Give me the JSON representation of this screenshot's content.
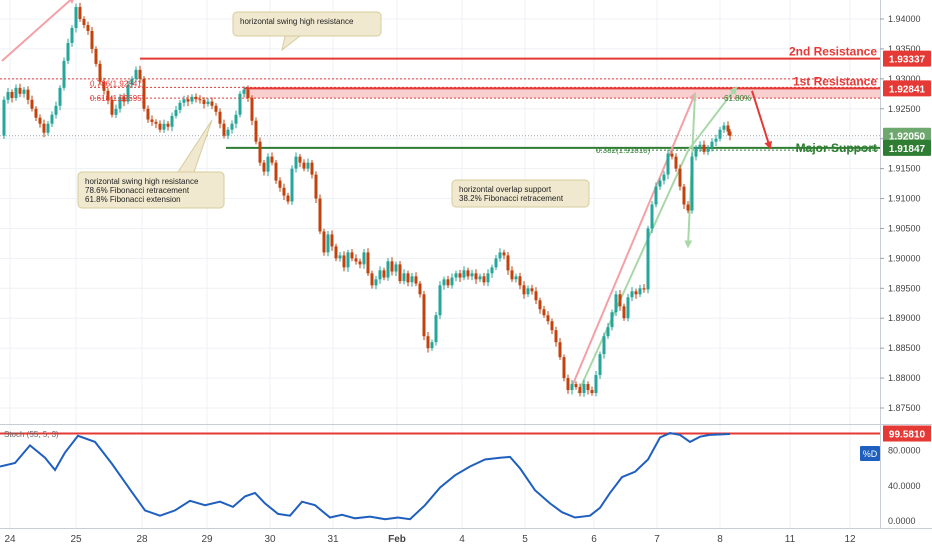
{
  "chart_data": {
    "type": "candlestick",
    "price_axis": {
      "min": 1.8725,
      "max": 1.9445,
      "ticks": [
        "1.94000",
        "1.93500",
        "1.93000",
        "1.92500",
        "1.92000",
        "1.91500",
        "1.91000",
        "1.90500",
        "1.90000",
        "1.89500",
        "1.89000",
        "1.88500",
        "1.88000",
        "1.87500"
      ]
    },
    "time_axis": {
      "labels": [
        "24",
        "25",
        "28",
        "29",
        "30",
        "31",
        "Feb",
        "4",
        "5",
        "6",
        "7",
        "8",
        "11",
        "12"
      ],
      "bold": [
        "Feb"
      ]
    },
    "series": [
      {
        "x": 0,
        "y": 1.9205
      },
      {
        "x": 4,
        "y": 1.9265
      },
      {
        "x": 8,
        "y": 1.9278
      },
      {
        "x": 12,
        "y": 1.9268
      },
      {
        "x": 16,
        "y": 1.9285
      },
      {
        "x": 20,
        "y": 1.9275
      },
      {
        "x": 24,
        "y": 1.9282
      },
      {
        "x": 28,
        "y": 1.9265
      },
      {
        "x": 32,
        "y": 1.925
      },
      {
        "x": 36,
        "y": 1.9235
      },
      {
        "x": 40,
        "y": 1.9225
      },
      {
        "x": 44,
        "y": 1.921
      },
      {
        "x": 48,
        "y": 1.9225
      },
      {
        "x": 52,
        "y": 1.924
      },
      {
        "x": 56,
        "y": 1.9255
      },
      {
        "x": 60,
        "y": 1.9285
      },
      {
        "x": 64,
        "y": 1.933
      },
      {
        "x": 68,
        "y": 1.936
      },
      {
        "x": 72,
        "y": 1.9385
      },
      {
        "x": 76,
        "y": 1.942
      },
      {
        "x": 80,
        "y": 1.94
      },
      {
        "x": 84,
        "y": 1.939
      },
      {
        "x": 88,
        "y": 1.938
      },
      {
        "x": 92,
        "y": 1.935
      },
      {
        "x": 96,
        "y": 1.9325
      },
      {
        "x": 100,
        "y": 1.9295
      },
      {
        "x": 104,
        "y": 1.928
      },
      {
        "x": 108,
        "y": 1.9265
      },
      {
        "x": 112,
        "y": 1.924
      },
      {
        "x": 116,
        "y": 1.925
      },
      {
        "x": 120,
        "y": 1.927
      },
      {
        "x": 124,
        "y": 1.9262
      },
      {
        "x": 128,
        "y": 1.929
      },
      {
        "x": 132,
        "y": 1.93
      },
      {
        "x": 136,
        "y": 1.9315
      },
      {
        "x": 140,
        "y": 1.93
      },
      {
        "x": 144,
        "y": 1.925
      },
      {
        "x": 148,
        "y": 1.9232
      },
      {
        "x": 152,
        "y": 1.9228
      },
      {
        "x": 156,
        "y": 1.9225
      },
      {
        "x": 160,
        "y": 1.9215
      },
      {
        "x": 164,
        "y": 1.9225
      },
      {
        "x": 168,
        "y": 1.922
      },
      {
        "x": 172,
        "y": 1.9238
      },
      {
        "x": 176,
        "y": 1.9248
      },
      {
        "x": 180,
        "y": 1.926
      },
      {
        "x": 184,
        "y": 1.9266
      },
      {
        "x": 188,
        "y": 1.9262
      },
      {
        "x": 192,
        "y": 1.927
      },
      {
        "x": 196,
        "y": 1.9266
      },
      {
        "x": 200,
        "y": 1.9265
      },
      {
        "x": 204,
        "y": 1.9258
      },
      {
        "x": 208,
        "y": 1.9262
      },
      {
        "x": 212,
        "y": 1.9255
      },
      {
        "x": 216,
        "y": 1.9245
      },
      {
        "x": 220,
        "y": 1.9225
      },
      {
        "x": 224,
        "y": 1.9205
      },
      {
        "x": 228,
        "y": 1.9215
      },
      {
        "x": 232,
        "y": 1.9225
      },
      {
        "x": 236,
        "y": 1.924
      },
      {
        "x": 240,
        "y": 1.9275
      },
      {
        "x": 244,
        "y": 1.9282
      },
      {
        "x": 248,
        "y": 1.9268
      },
      {
        "x": 252,
        "y": 1.923
      },
      {
        "x": 256,
        "y": 1.9195
      },
      {
        "x": 260,
        "y": 1.916
      },
      {
        "x": 264,
        "y": 1.9145
      },
      {
        "x": 268,
        "y": 1.917
      },
      {
        "x": 272,
        "y": 1.916
      },
      {
        "x": 276,
        "y": 1.913
      },
      {
        "x": 280,
        "y": 1.9118
      },
      {
        "x": 284,
        "y": 1.9105
      },
      {
        "x": 288,
        "y": 1.9095
      },
      {
        "x": 292,
        "y": 1.915
      },
      {
        "x": 296,
        "y": 1.917
      },
      {
        "x": 300,
        "y": 1.916
      },
      {
        "x": 304,
        "y": 1.915
      },
      {
        "x": 308,
        "y": 1.916
      },
      {
        "x": 312,
        "y": 1.914
      },
      {
        "x": 316,
        "y": 1.91
      },
      {
        "x": 320,
        "y": 1.9045
      },
      {
        "x": 324,
        "y": 1.901
      },
      {
        "x": 328,
        "y": 1.904
      },
      {
        "x": 332,
        "y": 1.902
      },
      {
        "x": 336,
        "y": 1.9
      },
      {
        "x": 340,
        "y": 1.9005
      },
      {
        "x": 344,
        "y": 1.8985
      },
      {
        "x": 348,
        "y": 1.901
      },
      {
        "x": 352,
        "y": 1.9
      },
      {
        "x": 356,
        "y": 1.8995
      },
      {
        "x": 360,
        "y": 1.899
      },
      {
        "x": 364,
        "y": 1.901
      },
      {
        "x": 368,
        "y": 1.8975
      },
      {
        "x": 372,
        "y": 1.8955
      },
      {
        "x": 376,
        "y": 1.8965
      },
      {
        "x": 380,
        "y": 1.898
      },
      {
        "x": 384,
        "y": 1.8968
      },
      {
        "x": 388,
        "y": 1.8995
      },
      {
        "x": 392,
        "y": 1.8978
      },
      {
        "x": 396,
        "y": 1.899
      },
      {
        "x": 400,
        "y": 1.8962
      },
      {
        "x": 404,
        "y": 1.8975
      },
      {
        "x": 408,
        "y": 1.896
      },
      {
        "x": 412,
        "y": 1.897
      },
      {
        "x": 416,
        "y": 1.8958
      },
      {
        "x": 420,
        "y": 1.894
      },
      {
        "x": 424,
        "y": 1.887
      },
      {
        "x": 428,
        "y": 1.885
      },
      {
        "x": 432,
        "y": 1.886
      },
      {
        "x": 436,
        "y": 1.8905
      },
      {
        "x": 440,
        "y": 1.8955
      },
      {
        "x": 444,
        "y": 1.8965
      },
      {
        "x": 448,
        "y": 1.8955
      },
      {
        "x": 452,
        "y": 1.8968
      },
      {
        "x": 456,
        "y": 1.8975
      },
      {
        "x": 460,
        "y": 1.8968
      },
      {
        "x": 464,
        "y": 1.898
      },
      {
        "x": 468,
        "y": 1.897
      },
      {
        "x": 472,
        "y": 1.8975
      },
      {
        "x": 476,
        "y": 1.8965
      },
      {
        "x": 480,
        "y": 1.897
      },
      {
        "x": 484,
        "y": 1.896
      },
      {
        "x": 488,
        "y": 1.8975
      },
      {
        "x": 492,
        "y": 1.8985
      },
      {
        "x": 496,
        "y": 1.9
      },
      {
        "x": 500,
        "y": 1.901
      },
      {
        "x": 504,
        "y": 1.9005
      },
      {
        "x": 508,
        "y": 1.898
      },
      {
        "x": 512,
        "y": 1.8965
      },
      {
        "x": 516,
        "y": 1.897
      },
      {
        "x": 520,
        "y": 1.8955
      },
      {
        "x": 524,
        "y": 1.894
      },
      {
        "x": 528,
        "y": 1.895
      },
      {
        "x": 532,
        "y": 1.8945
      },
      {
        "x": 536,
        "y": 1.893
      },
      {
        "x": 540,
        "y": 1.8915
      },
      {
        "x": 544,
        "y": 1.8905
      },
      {
        "x": 548,
        "y": 1.8895
      },
      {
        "x": 552,
        "y": 1.888
      },
      {
        "x": 556,
        "y": 1.886
      },
      {
        "x": 560,
        "y": 1.8835
      },
      {
        "x": 564,
        "y": 1.88
      },
      {
        "x": 568,
        "y": 1.878
      },
      {
        "x": 572,
        "y": 1.879
      },
      {
        "x": 576,
        "y": 1.8785
      },
      {
        "x": 580,
        "y": 1.8775
      },
      {
        "x": 584,
        "y": 1.879
      },
      {
        "x": 588,
        "y": 1.878
      },
      {
        "x": 592,
        "y": 1.8775
      },
      {
        "x": 596,
        "y": 1.8805
      },
      {
        "x": 600,
        "y": 1.884
      },
      {
        "x": 604,
        "y": 1.887
      },
      {
        "x": 608,
        "y": 1.8885
      },
      {
        "x": 612,
        "y": 1.891
      },
      {
        "x": 616,
        "y": 1.894
      },
      {
        "x": 620,
        "y": 1.892
      },
      {
        "x": 624,
        "y": 1.89
      },
      {
        "x": 628,
        "y": 1.8935
      },
      {
        "x": 632,
        "y": 1.8945
      },
      {
        "x": 636,
        "y": 1.894
      },
      {
        "x": 640,
        "y": 1.895
      },
      {
        "x": 644,
        "y": 1.8948
      },
      {
        "x": 648,
        "y": 1.905
      },
      {
        "x": 652,
        "y": 1.909
      },
      {
        "x": 656,
        "y": 1.912
      },
      {
        "x": 660,
        "y": 1.913
      },
      {
        "x": 664,
        "y": 1.914
      },
      {
        "x": 668,
        "y": 1.9175
      },
      {
        "x": 672,
        "y": 1.917
      },
      {
        "x": 676,
        "y": 1.915
      },
      {
        "x": 680,
        "y": 1.912
      },
      {
        "x": 684,
        "y": 1.909
      },
      {
        "x": 688,
        "y": 1.908
      },
      {
        "x": 692,
        "y": 1.917
      },
      {
        "x": 696,
        "y": 1.9185
      },
      {
        "x": 700,
        "y": 1.919
      },
      {
        "x": 704,
        "y": 1.9178
      },
      {
        "x": 708,
        "y": 1.9185
      },
      {
        "x": 712,
        "y": 1.9195
      },
      {
        "x": 716,
        "y": 1.92
      },
      {
        "x": 720,
        "y": 1.9215
      },
      {
        "x": 724,
        "y": 1.9222
      },
      {
        "x": 728,
        "y": 1.9212
      },
      {
        "x": 730,
        "y": 1.9205
      }
    ],
    "levels": [
      {
        "id": "r2",
        "label": "2nd Resistance",
        "value": "1.93337",
        "price": 1.93337,
        "color": "#e53935"
      },
      {
        "id": "r1",
        "label": "1st Resistance",
        "value": "1.92841",
        "price": 1.92841,
        "color": "#e53935"
      },
      {
        "id": "last",
        "label": "",
        "value": "1.92050",
        "price": 1.9205,
        "color": "#6fa86f"
      },
      {
        "id": "support",
        "label": "Major Support",
        "value": "1.91847",
        "price": 1.91847,
        "color": "#2e7d32"
      }
    ],
    "fib_labels": {
      "fib786": "0.786(1.92841)",
      "fib618": "0.618(1.92695)",
      "fib382": "0.382(1.91810)",
      "ext618": "61.80%"
    },
    "annotations": {
      "top": "horizontal swing high resistance",
      "left": [
        "horizontal swing high resistance",
        "78.6% Fibonacci retracement",
        "61.8% Fibonacci extension"
      ],
      "mid": [
        "horizontal overlap support",
        "38.2% Fibonacci retracement"
      ]
    },
    "stochastic": {
      "label": "Stoch (55, 5, 3)",
      "level_value": "99.5810",
      "level": 99.581,
      "d_badge": "%D",
      "ticks": [
        "80.0000",
        "40.0000",
        "0.0000"
      ],
      "range": [
        -8,
        107
      ],
      "values": [
        {
          "x": 0,
          "y": 62
        },
        {
          "x": 15,
          "y": 66
        },
        {
          "x": 30,
          "y": 86
        },
        {
          "x": 45,
          "y": 72
        },
        {
          "x": 55,
          "y": 58
        },
        {
          "x": 65,
          "y": 78
        },
        {
          "x": 78,
          "y": 97
        },
        {
          "x": 95,
          "y": 90
        },
        {
          "x": 112,
          "y": 65
        },
        {
          "x": 130,
          "y": 36
        },
        {
          "x": 145,
          "y": 12
        },
        {
          "x": 160,
          "y": 6
        },
        {
          "x": 175,
          "y": 12
        },
        {
          "x": 190,
          "y": 23
        },
        {
          "x": 205,
          "y": 18
        },
        {
          "x": 220,
          "y": 22
        },
        {
          "x": 233,
          "y": 16
        },
        {
          "x": 245,
          "y": 28
        },
        {
          "x": 255,
          "y": 32
        },
        {
          "x": 265,
          "y": 20
        },
        {
          "x": 278,
          "y": 8
        },
        {
          "x": 290,
          "y": 6
        },
        {
          "x": 302,
          "y": 22
        },
        {
          "x": 315,
          "y": 18
        },
        {
          "x": 330,
          "y": 4
        },
        {
          "x": 342,
          "y": 7
        },
        {
          "x": 355,
          "y": 3
        },
        {
          "x": 370,
          "y": 5
        },
        {
          "x": 385,
          "y": 2
        },
        {
          "x": 398,
          "y": 4
        },
        {
          "x": 410,
          "y": 2
        },
        {
          "x": 425,
          "y": 18
        },
        {
          "x": 440,
          "y": 38
        },
        {
          "x": 455,
          "y": 52
        },
        {
          "x": 470,
          "y": 62
        },
        {
          "x": 485,
          "y": 70
        },
        {
          "x": 500,
          "y": 72
        },
        {
          "x": 510,
          "y": 73
        },
        {
          "x": 520,
          "y": 60
        },
        {
          "x": 535,
          "y": 35
        },
        {
          "x": 550,
          "y": 20
        },
        {
          "x": 562,
          "y": 10
        },
        {
          "x": 575,
          "y": 4
        },
        {
          "x": 590,
          "y": 6
        },
        {
          "x": 600,
          "y": 15
        },
        {
          "x": 610,
          "y": 32
        },
        {
          "x": 622,
          "y": 50
        },
        {
          "x": 635,
          "y": 56
        },
        {
          "x": 648,
          "y": 70
        },
        {
          "x": 660,
          "y": 95
        },
        {
          "x": 670,
          "y": 100
        },
        {
          "x": 680,
          "y": 98
        },
        {
          "x": 690,
          "y": 90
        },
        {
          "x": 700,
          "y": 96
        },
        {
          "x": 710,
          "y": 98
        },
        {
          "x": 730,
          "y": 99
        }
      ]
    }
  }
}
